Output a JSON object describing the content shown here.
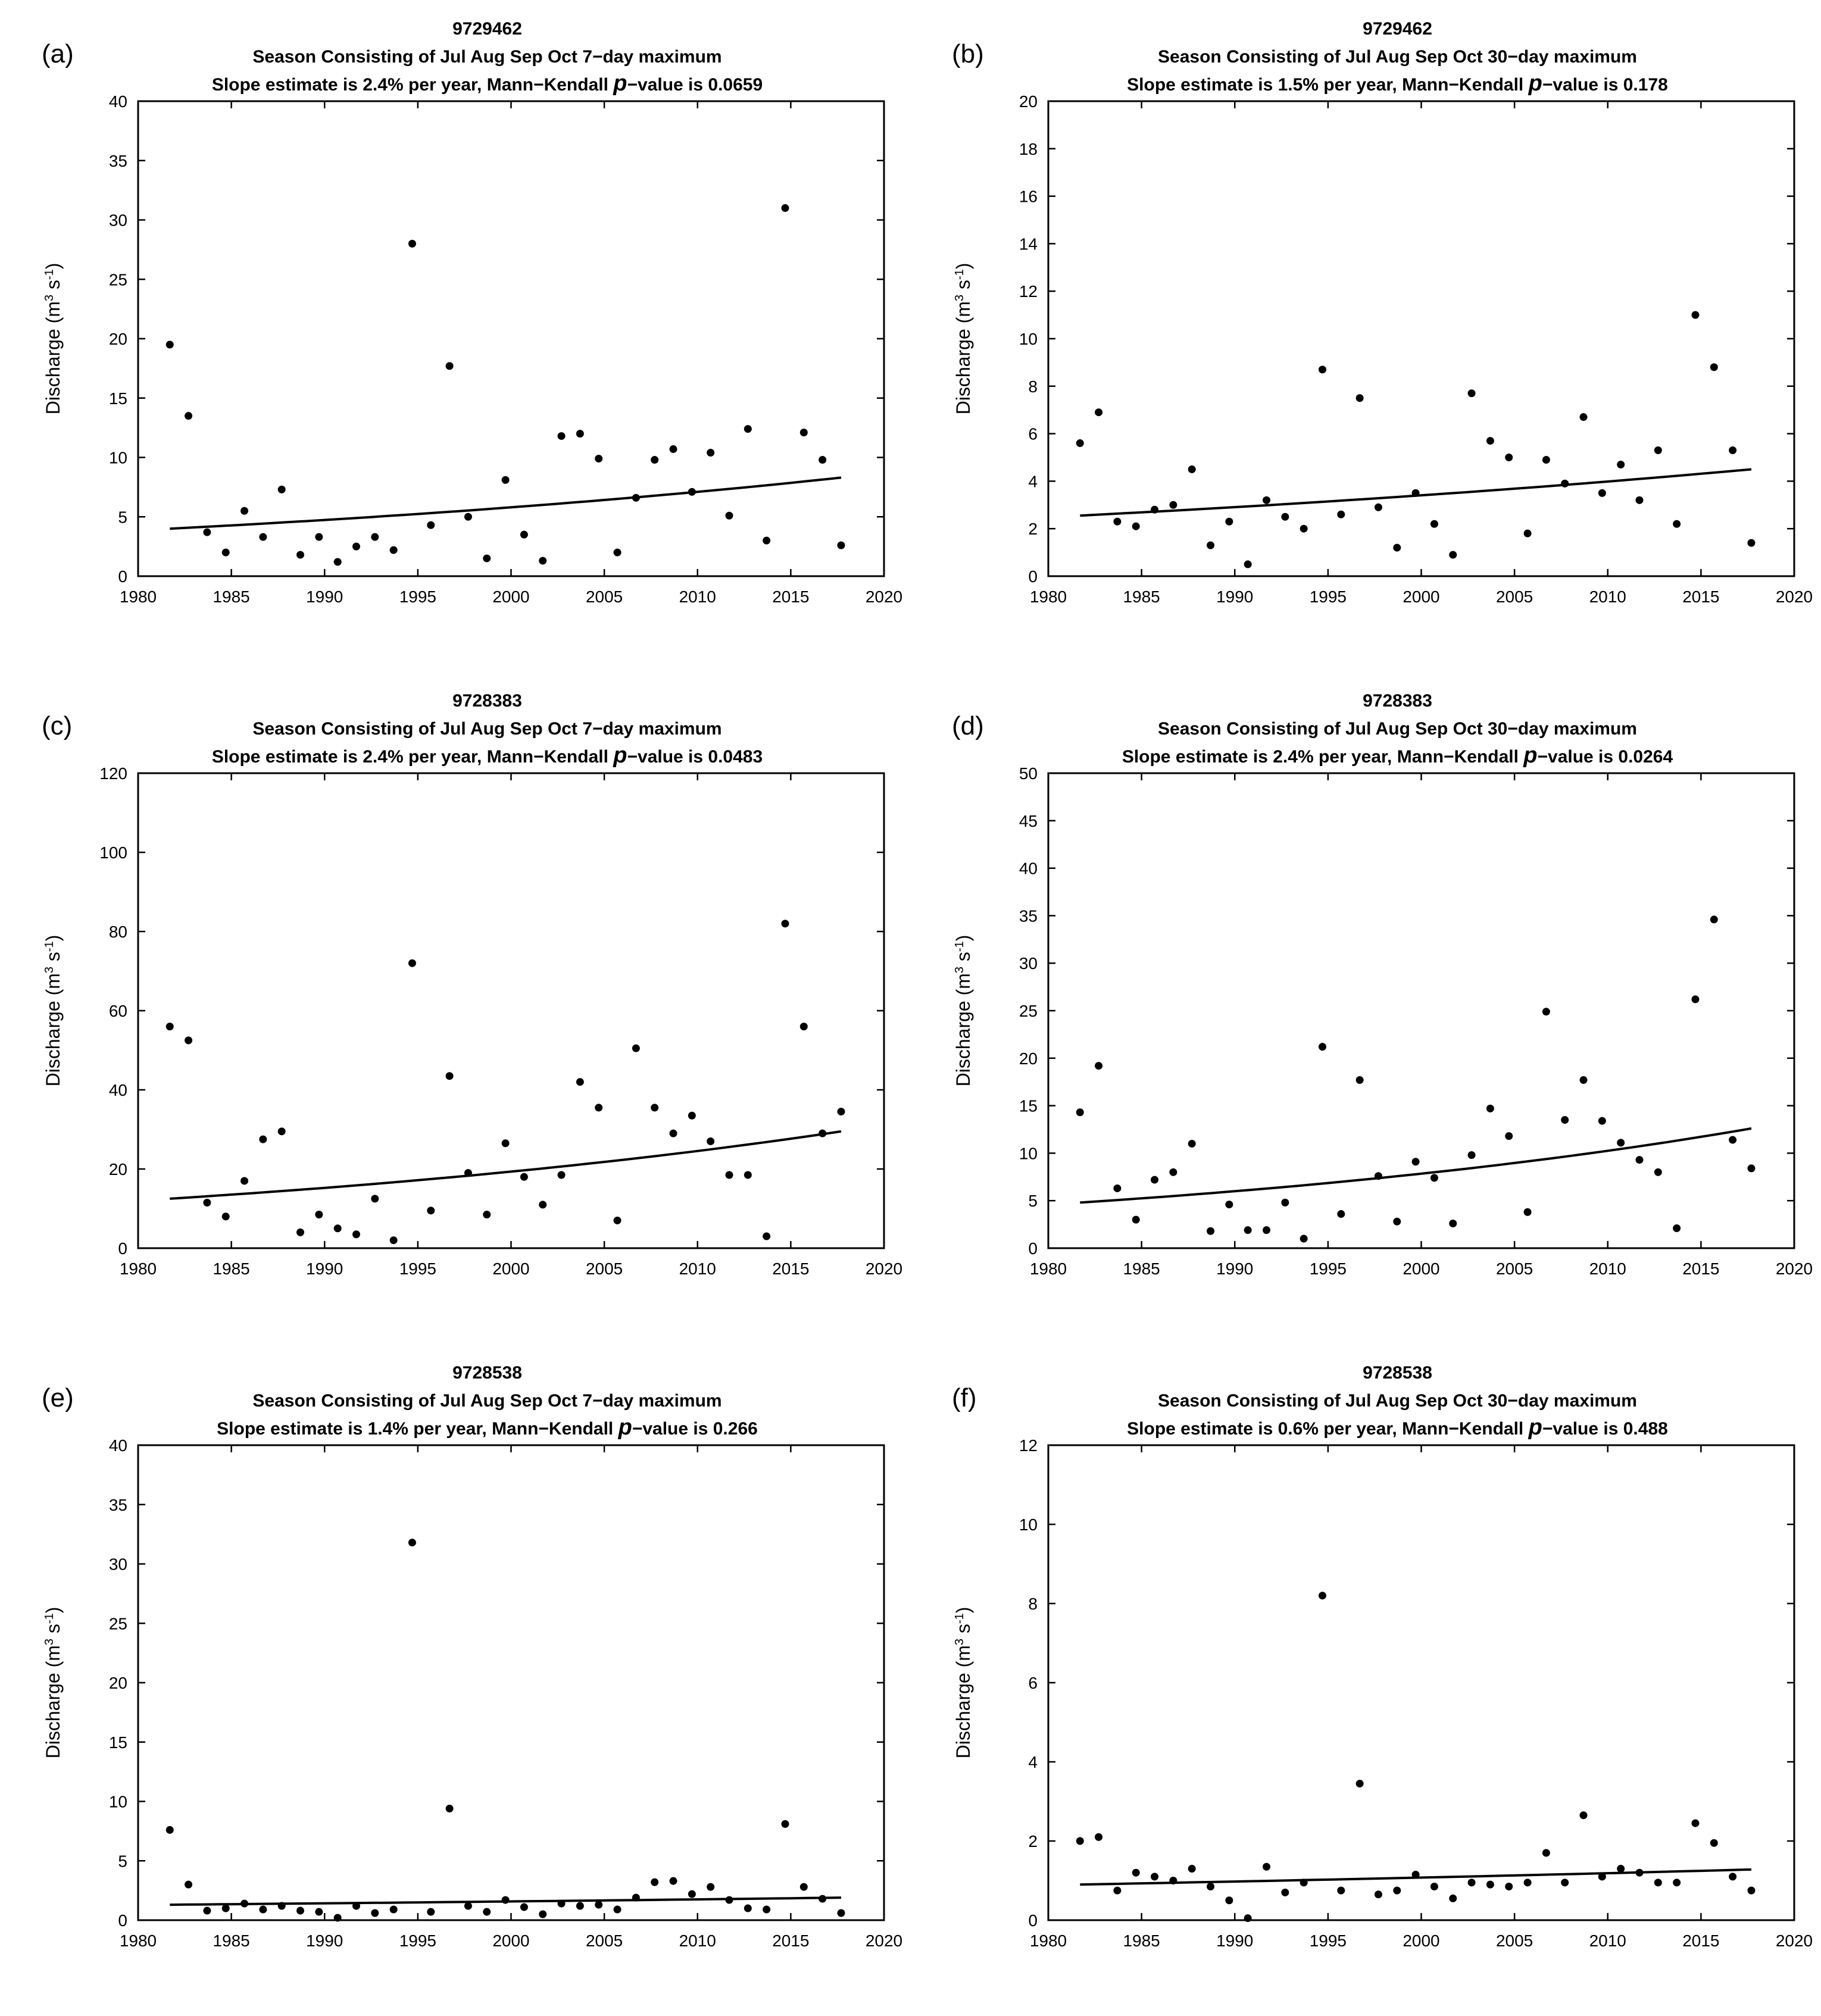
{
  "chart_data": [
    {
      "panel_label": "(a)",
      "type": "scatter",
      "title_lines": [
        "9729462",
        "Season Consisting of Jul Aug Sep Oct  7−day maximum"
      ],
      "slope_text": "Slope estimate is 2.4% per year, Mann−Kendall ",
      "p_symbol": "p",
      "p_text": "−value is 0.0659",
      "ylabel": [
        "Discharge (m",
        "3",
        " s",
        "-1",
        ")"
      ],
      "xlim": [
        1980,
        2020
      ],
      "ylim": [
        0,
        40
      ],
      "xticks": [
        1980,
        1985,
        1990,
        1995,
        2000,
        2005,
        2010,
        2015,
        2020
      ],
      "yticks": [
        0,
        5,
        10,
        15,
        20,
        25,
        30,
        35,
        40
      ],
      "x": [
        1981.7,
        1982.7,
        1983.7,
        1984.7,
        1985.7,
        1986.7,
        1987.7,
        1988.7,
        1989.7,
        1990.7,
        1991.7,
        1992.7,
        1993.7,
        1994.7,
        1995.7,
        1996.7,
        1997.7,
        1998.7,
        1999.7,
        2000.7,
        2001.7,
        2002.7,
        2003.7,
        2004.7,
        2005.7,
        2006.7,
        2007.7,
        2008.7,
        2009.7,
        2010.7,
        2011.7,
        2012.7,
        2013.7,
        2014.7,
        2015.7,
        2016.7,
        2017.7
      ],
      "y": [
        19.5,
        13.5,
        3.7,
        2.0,
        5.5,
        3.3,
        7.3,
        1.8,
        3.3,
        1.2,
        2.5,
        3.3,
        2.2,
        28.0,
        4.3,
        17.7,
        5.0,
        1.5,
        8.1,
        3.5,
        1.3,
        11.8,
        12.0,
        9.9,
        2.0,
        6.6,
        9.8,
        10.7,
        7.1,
        10.4,
        5.1,
        12.4,
        3.0,
        31.0,
        12.1,
        9.8,
        2.6
      ],
      "trend_start": 4.0,
      "trend_end": 8.3
    },
    {
      "panel_label": "(b)",
      "type": "scatter",
      "title_lines": [
        "9729462",
        "Season Consisting of Jul Aug Sep Oct  30−day maximum"
      ],
      "slope_text": "Slope estimate is 1.5% per year, Mann−Kendall ",
      "p_symbol": "p",
      "p_text": "−value is 0.178",
      "ylabel": [
        "Discharge (m",
        "3",
        " s",
        "-1",
        ")"
      ],
      "xlim": [
        1980,
        2020
      ],
      "ylim": [
        0,
        20
      ],
      "xticks": [
        1980,
        1985,
        1990,
        1995,
        2000,
        2005,
        2010,
        2015,
        2020
      ],
      "yticks": [
        0,
        2,
        4,
        6,
        8,
        10,
        12,
        14,
        16,
        18,
        20
      ],
      "x": [
        1981.7,
        1982.7,
        1983.7,
        1984.7,
        1985.7,
        1986.7,
        1987.7,
        1988.7,
        1989.7,
        1990.7,
        1991.7,
        1992.7,
        1993.7,
        1994.7,
        1995.7,
        1996.7,
        1997.7,
        1998.7,
        1999.7,
        2000.7,
        2001.7,
        2002.7,
        2003.7,
        2004.7,
        2005.7,
        2006.7,
        2007.7,
        2008.7,
        2009.7,
        2010.7,
        2011.7,
        2012.7,
        2013.7,
        2014.7,
        2015.7,
        2016.7,
        2017.7
      ],
      "y": [
        5.6,
        6.9,
        2.3,
        2.1,
        2.8,
        3.0,
        4.5,
        1.3,
        2.3,
        0.5,
        3.2,
        2.5,
        2.0,
        8.7,
        2.6,
        7.5,
        2.9,
        1.2,
        3.5,
        2.2,
        0.9,
        7.7,
        5.7,
        5.0,
        1.8,
        4.9,
        3.9,
        6.7,
        3.5,
        4.7,
        3.2,
        5.3,
        2.2,
        11.0,
        8.8,
        5.3,
        1.4
      ],
      "trend_start": 2.55,
      "trend_end": 4.5
    },
    {
      "panel_label": "(c)",
      "type": "scatter",
      "title_lines": [
        "9728383",
        "Season Consisting of Jul Aug Sep Oct  7−day maximum"
      ],
      "slope_text": "Slope estimate is 2.4% per year, Mann−Kendall ",
      "p_symbol": "p",
      "p_text": "−value is 0.0483",
      "ylabel": [
        "Discharge (m",
        "3",
        " s",
        "-1",
        ")"
      ],
      "xlim": [
        1980,
        2020
      ],
      "ylim": [
        0,
        120
      ],
      "xticks": [
        1980,
        1985,
        1990,
        1995,
        2000,
        2005,
        2010,
        2015,
        2020
      ],
      "yticks": [
        0,
        20,
        40,
        60,
        80,
        100,
        120
      ],
      "x": [
        1981.7,
        1982.7,
        1983.7,
        1984.7,
        1985.7,
        1986.7,
        1987.7,
        1988.7,
        1989.7,
        1990.7,
        1991.7,
        1992.7,
        1993.7,
        1994.7,
        1995.7,
        1996.7,
        1997.7,
        1998.7,
        1999.7,
        2000.7,
        2001.7,
        2002.7,
        2003.7,
        2004.7,
        2005.7,
        2006.7,
        2007.7,
        2008.7,
        2009.7,
        2010.7,
        2011.7,
        2012.7,
        2013.7,
        2014.7,
        2015.7,
        2016.7,
        2017.7
      ],
      "y": [
        56,
        52.5,
        11.5,
        8,
        17,
        27.5,
        29.5,
        4,
        8.5,
        5,
        3.5,
        12.5,
        2,
        72,
        9.5,
        43.5,
        19,
        8.5,
        26.5,
        18,
        11,
        18.5,
        42,
        35.5,
        7,
        50.5,
        35.5,
        29,
        33.5,
        27,
        18.5,
        18.5,
        3,
        82,
        56,
        29,
        34.5
      ],
      "trend_start": 12.5,
      "trend_end": 29.5
    },
    {
      "panel_label": "(d)",
      "type": "scatter",
      "title_lines": [
        "9728383",
        "Season Consisting of Jul Aug Sep Oct  30−day maximum"
      ],
      "slope_text": "Slope estimate is 2.4% per year, Mann−Kendall ",
      "p_symbol": "p",
      "p_text": "−value is 0.0264",
      "ylabel": [
        "Discharge (m",
        "3",
        " s",
        "-1",
        ")"
      ],
      "xlim": [
        1980,
        2020
      ],
      "ylim": [
        0,
        50
      ],
      "xticks": [
        1980,
        1985,
        1990,
        1995,
        2000,
        2005,
        2010,
        2015,
        2020
      ],
      "yticks": [
        0,
        5,
        10,
        15,
        20,
        25,
        30,
        35,
        40,
        45,
        50
      ],
      "x": [
        1981.7,
        1982.7,
        1983.7,
        1984.7,
        1985.7,
        1986.7,
        1987.7,
        1988.7,
        1989.7,
        1990.7,
        1991.7,
        1992.7,
        1993.7,
        1994.7,
        1995.7,
        1996.7,
        1997.7,
        1998.7,
        1999.7,
        2000.7,
        2001.7,
        2002.7,
        2003.7,
        2004.7,
        2005.7,
        2006.7,
        2007.7,
        2008.7,
        2009.7,
        2010.7,
        2011.7,
        2012.7,
        2013.7,
        2014.7,
        2015.7,
        2016.7,
        2017.7
      ],
      "y": [
        14.3,
        19.2,
        6.3,
        3.0,
        7.2,
        8.0,
        11.0,
        1.8,
        4.6,
        1.9,
        1.9,
        4.8,
        1.0,
        21.2,
        3.6,
        17.7,
        7.6,
        2.8,
        9.1,
        7.4,
        2.6,
        9.8,
        14.7,
        11.8,
        3.8,
        24.9,
        13.5,
        17.7,
        13.4,
        11.1,
        9.3,
        8.0,
        2.1,
        26.2,
        34.6,
        11.4,
        8.4
      ],
      "trend_start": 4.8,
      "trend_end": 12.6
    },
    {
      "panel_label": "(e)",
      "type": "scatter",
      "title_lines": [
        "9728538",
        "Season Consisting of Jul Aug Sep Oct  7−day maximum"
      ],
      "slope_text": "Slope estimate is 1.4% per year, Mann−Kendall ",
      "p_symbol": "p",
      "p_text": "−value is 0.266",
      "ylabel": [
        "Discharge (m",
        "3",
        " s",
        "-1",
        ")"
      ],
      "xlim": [
        1980,
        2020
      ],
      "ylim": [
        0,
        40
      ],
      "xticks": [
        1980,
        1985,
        1990,
        1995,
        2000,
        2005,
        2010,
        2015,
        2020
      ],
      "yticks": [
        0,
        5,
        10,
        15,
        20,
        25,
        30,
        35,
        40
      ],
      "x": [
        1981.7,
        1982.7,
        1983.7,
        1984.7,
        1985.7,
        1986.7,
        1987.7,
        1988.7,
        1989.7,
        1990.7,
        1991.7,
        1992.7,
        1993.7,
        1994.7,
        1995.7,
        1996.7,
        1997.7,
        1998.7,
        1999.7,
        2000.7,
        2001.7,
        2002.7,
        2003.7,
        2004.7,
        2005.7,
        2006.7,
        2007.7,
        2008.7,
        2009.7,
        2010.7,
        2011.7,
        2012.7,
        2013.7,
        2014.7,
        2015.7,
        2016.7,
        2017.7
      ],
      "y": [
        7.6,
        3.0,
        0.8,
        1.0,
        1.4,
        0.9,
        1.2,
        0.8,
        0.7,
        0.2,
        1.2,
        0.6,
        0.9,
        31.8,
        0.7,
        9.4,
        1.2,
        0.7,
        1.7,
        1.1,
        0.5,
        1.4,
        1.2,
        1.3,
        0.9,
        1.9,
        3.2,
        3.3,
        2.2,
        2.8,
        1.7,
        1.0,
        0.9,
        8.1,
        2.8,
        1.8,
        0.6
      ],
      "trend_start": 1.3,
      "trend_end": 1.9
    },
    {
      "panel_label": "(f)",
      "type": "scatter",
      "title_lines": [
        "9728538",
        "Season Consisting of Jul Aug Sep Oct  30−day maximum"
      ],
      "slope_text": "Slope estimate is 0.6% per year, Mann−Kendall ",
      "p_symbol": "p",
      "p_text": "−value is 0.488",
      "ylabel": [
        "Discharge (m",
        "3",
        " s",
        "-1",
        ")"
      ],
      "xlim": [
        1980,
        2020
      ],
      "ylim": [
        0,
        12
      ],
      "xticks": [
        1980,
        1985,
        1990,
        1995,
        2000,
        2005,
        2010,
        2015,
        2020
      ],
      "yticks": [
        0,
        2,
        4,
        6,
        8,
        10,
        12
      ],
      "x": [
        1981.7,
        1982.7,
        1983.7,
        1984.7,
        1985.7,
        1986.7,
        1987.7,
        1988.7,
        1989.7,
        1990.7,
        1991.7,
        1992.7,
        1993.7,
        1994.7,
        1995.7,
        1996.7,
        1997.7,
        1998.7,
        1999.7,
        2000.7,
        2001.7,
        2002.7,
        2003.7,
        2004.7,
        2005.7,
        2006.7,
        2007.7,
        2008.7,
        2009.7,
        2010.7,
        2011.7,
        2012.7,
        2013.7,
        2014.7,
        2015.7,
        2016.7,
        2017.7
      ],
      "y": [
        2.0,
        2.1,
        0.75,
        1.2,
        1.1,
        1.0,
        1.3,
        0.85,
        0.5,
        0.05,
        1.35,
        0.7,
        0.95,
        8.2,
        0.75,
        3.45,
        0.65,
        0.75,
        1.15,
        0.85,
        0.55,
        0.95,
        0.9,
        0.85,
        0.95,
        1.7,
        0.95,
        2.65,
        1.1,
        1.3,
        1.2,
        0.95,
        0.95,
        2.45,
        1.95,
        1.1,
        0.75
      ],
      "trend_start": 0.9,
      "trend_end": 1.28
    }
  ]
}
